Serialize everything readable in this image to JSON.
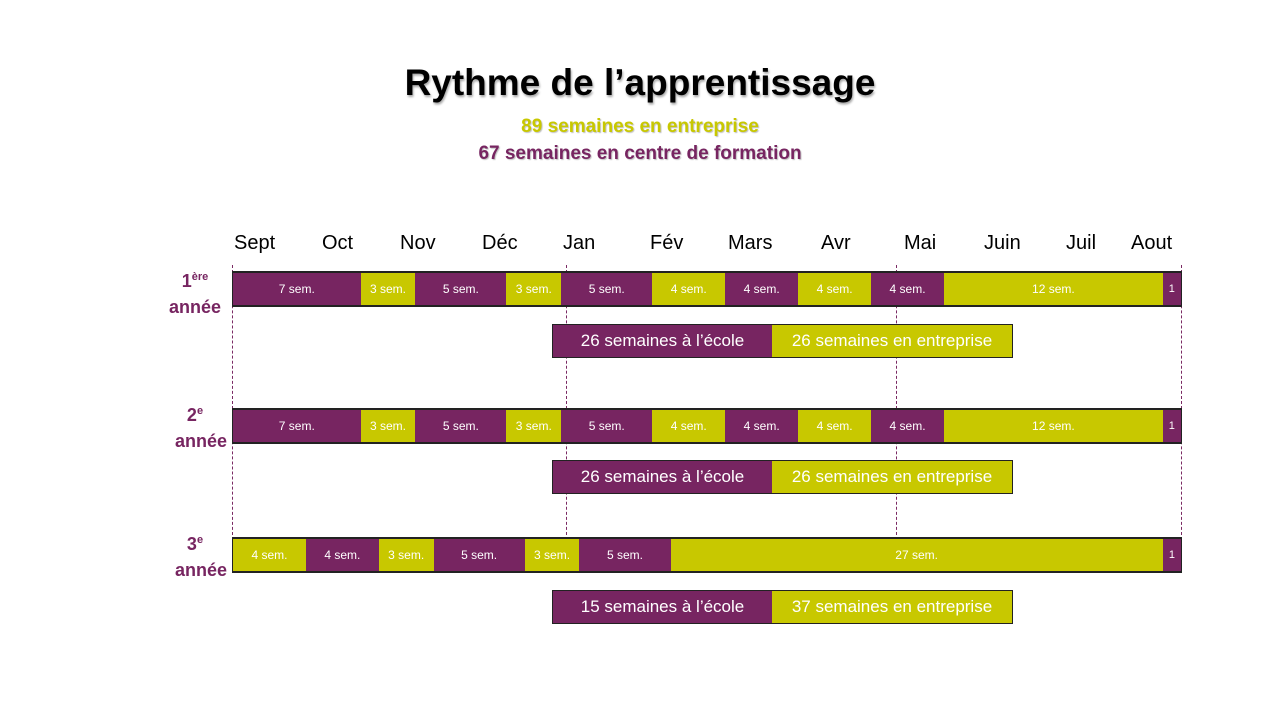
{
  "colors": {
    "school": "#772561",
    "company": "#c8c800"
  },
  "title": "Rythme de l’apprentissage",
  "subtitle_company": "89 semaines en entreprise",
  "subtitle_school": "67 semaines en centre de formation",
  "months": [
    "Sept",
    "Oct",
    "Nov",
    "Déc",
    "Jan",
    "Fév",
    "Mars",
    "Avr",
    "Mai",
    "Juin",
    "Juil",
    "Aout"
  ],
  "years": [
    {
      "label_num": "1",
      "label_sup": "ère",
      "label_word": "année",
      "segments": [
        {
          "kind": "school",
          "weeks": 7,
          "text": "7 sem."
        },
        {
          "kind": "company",
          "weeks": 3,
          "text": "3 sem."
        },
        {
          "kind": "school",
          "weeks": 5,
          "text": "5 sem."
        },
        {
          "kind": "company",
          "weeks": 3,
          "text": "3 sem."
        },
        {
          "kind": "school",
          "weeks": 5,
          "text": "5 sem."
        },
        {
          "kind": "company",
          "weeks": 4,
          "text": "4 sem."
        },
        {
          "kind": "school",
          "weeks": 4,
          "text": "4 sem."
        },
        {
          "kind": "company",
          "weeks": 4,
          "text": "4 sem."
        },
        {
          "kind": "school",
          "weeks": 4,
          "text": "4 sem."
        },
        {
          "kind": "company",
          "weeks": 12,
          "text": "12 sem."
        },
        {
          "kind": "school",
          "weeks": 1,
          "text": "1"
        }
      ],
      "summary_school": "26 semaines à l’école",
      "summary_company": "26 semaines en entreprise"
    },
    {
      "label_num": "2",
      "label_sup": "e",
      "label_word": "année",
      "segments": [
        {
          "kind": "school",
          "weeks": 7,
          "text": "7 sem."
        },
        {
          "kind": "company",
          "weeks": 3,
          "text": "3 sem."
        },
        {
          "kind": "school",
          "weeks": 5,
          "text": "5 sem."
        },
        {
          "kind": "company",
          "weeks": 3,
          "text": "3 sem."
        },
        {
          "kind": "school",
          "weeks": 5,
          "text": "5 sem."
        },
        {
          "kind": "company",
          "weeks": 4,
          "text": "4 sem."
        },
        {
          "kind": "school",
          "weeks": 4,
          "text": "4 sem."
        },
        {
          "kind": "company",
          "weeks": 4,
          "text": "4 sem."
        },
        {
          "kind": "school",
          "weeks": 4,
          "text": "4 sem."
        },
        {
          "kind": "company",
          "weeks": 12,
          "text": "12 sem."
        },
        {
          "kind": "school",
          "weeks": 1,
          "text": "1"
        }
      ],
      "summary_school": "26 semaines à l’école",
      "summary_company": "26 semaines en entreprise"
    },
    {
      "label_num": "3",
      "label_sup": "e",
      "label_word": "année",
      "segments": [
        {
          "kind": "company",
          "weeks": 4,
          "text": "4 sem."
        },
        {
          "kind": "school",
          "weeks": 4,
          "text": "4 sem."
        },
        {
          "kind": "company",
          "weeks": 3,
          "text": "3 sem."
        },
        {
          "kind": "school",
          "weeks": 5,
          "text": "5 sem."
        },
        {
          "kind": "company",
          "weeks": 3,
          "text": "3 sem."
        },
        {
          "kind": "school",
          "weeks": 5,
          "text": "5 sem."
        },
        {
          "kind": "company",
          "weeks": 27,
          "text": "27 sem."
        },
        {
          "kind": "school",
          "weeks": 1,
          "text": "1"
        }
      ],
      "summary_school": "15 semaines à l’école",
      "summary_company": "37 semaines en entreprise"
    }
  ]
}
